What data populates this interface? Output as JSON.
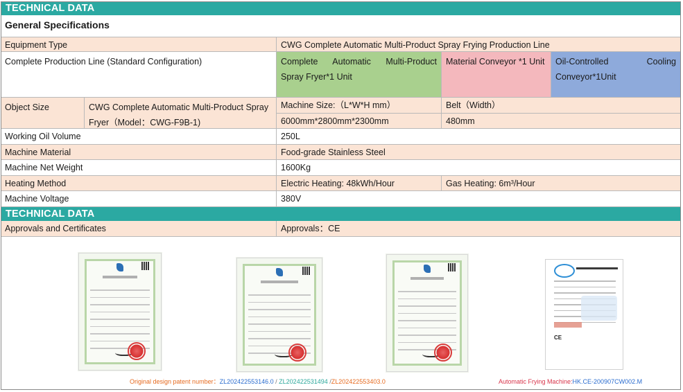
{
  "sections": {
    "technical_data_1": "TECHNICAL DATA",
    "technical_data_2": "TECHNICAL DATA",
    "general_specifications": "General Specifications"
  },
  "specs": {
    "equipment_type": {
      "label": "Equipment Type",
      "value": "CWG Complete Automatic Multi-Product Spray Frying Production Line"
    },
    "production_line": {
      "label": "Complete Production Line (Standard Configuration)",
      "fryer": "Complete Automatic Multi-Product Spray Fryer*1 Unit",
      "conveyor": "Material Conveyor *1 Unit",
      "cooling": "Oil-Controlled Cooling Conveyor*1Unit"
    },
    "object_size": {
      "label": "Object Size",
      "model": "CWG Complete Automatic Multi-Product Spray Fryer（Model：CWG-F9B-1)",
      "machine_size_label": "Machine Size:（L*W*H mm）",
      "belt_label": "Belt（Width）",
      "machine_size_value": "6000mm*2800mm*2300mm",
      "belt_value": "480mm"
    },
    "working_oil_volume": {
      "label": "Working Oil Volume",
      "value": "250L"
    },
    "machine_material": {
      "label": "Machine Material",
      "value": "Food-grade Stainless Steel"
    },
    "machine_net_weight": {
      "label": "Machine Net Weight",
      "value": "1600Kg"
    },
    "heating_method": {
      "label": "Heating Method",
      "electric": "Electric Heating: 48kWh/Hour",
      "gas": "Gas Heating: 6m³/Hour"
    },
    "machine_voltage": {
      "label": "Machine Voltage",
      "value": "380V"
    },
    "approvals": {
      "label": "Approvals and Certificates",
      "value": "Approvals：CE"
    }
  },
  "certificates": {
    "patent_title": "实用新型专利证书",
    "ce_title": "CERTIFICATE OF COMPLIANCE",
    "patent_caption_label": "Original design patent number：",
    "patent_1": "ZL202422553146.0",
    "sep_1": " / ",
    "patent_2": "ZL202422531494",
    "sep_2": " /",
    "patent_3": "ZL202422553403.0",
    "ce_caption_label": "Automatic Frying Machine:",
    "ce_number": "HK.CE-200907CW002.M"
  },
  "colors": {
    "header_band": "#2ba9a2",
    "peach_row": "#fbe4d5",
    "fryer_green": "#a9d08e",
    "conveyor_pink": "#f4b8bd",
    "cooling_blue": "#8eaadb"
  }
}
